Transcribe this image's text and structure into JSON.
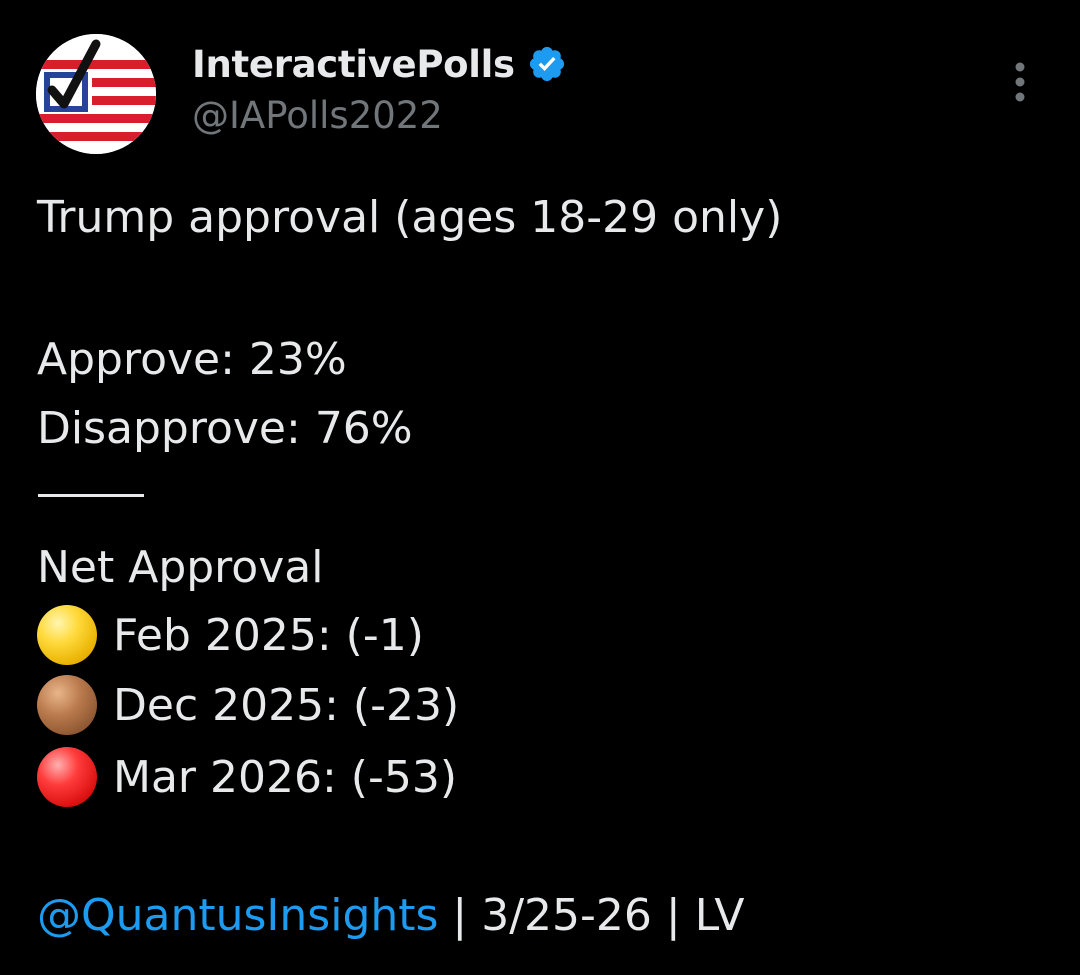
{
  "author": {
    "display_name": "InteractivePolls",
    "handle": "@IAPolls2022",
    "verified": true,
    "avatar_icon": "checkbox-flag-logo",
    "badge_icon": "verified-check-icon"
  },
  "menu": {
    "more_icon": "more-vertical-icon"
  },
  "post": {
    "title": "Trump approval (ages 18-29 only)",
    "approve": "Approve: 23%",
    "disapprove": "Disapprove: 76%",
    "net_heading": "Net Approval",
    "net_items": [
      {
        "icon": "yellow-circle-icon",
        "text": "Feb 2025: (-1)"
      },
      {
        "icon": "brown-circle-icon",
        "text": "Dec 2025: (-23)"
      },
      {
        "icon": "red-circle-icon",
        "text": "Mar 2026: (-53)"
      }
    ],
    "mention": "@QuantusInsights",
    "footer_rest": " | 3/25-26 | LV"
  },
  "colors": {
    "background": "#000000",
    "text": "#e7e9ea",
    "secondary_text": "#71767b",
    "link": "#1d9bf0",
    "verified_badge": "#1d9bf0"
  }
}
